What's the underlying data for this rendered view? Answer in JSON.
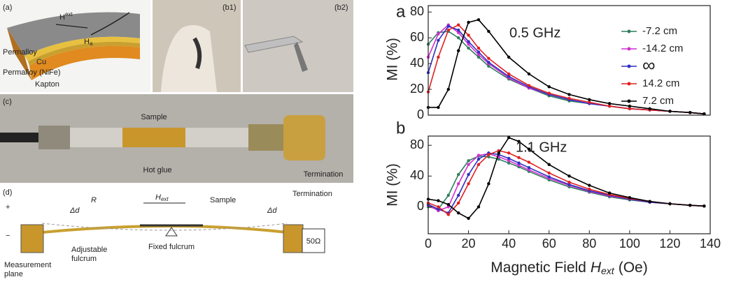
{
  "panels": {
    "a": {
      "label": "(a)",
      "h_ext": "H",
      "h_ext_sub": "ext",
      "h_a": "H",
      "h_a_sub": "a",
      "layers": [
        "Permalloy",
        "Cu",
        "Permalloy (NiFe)",
        "Kapton"
      ]
    },
    "b1": {
      "label": "(b1)"
    },
    "b2": {
      "label": "(b2)"
    },
    "c": {
      "label": "(c)",
      "sample": "Sample",
      "hot_glue": "Hot glue",
      "termination": "Termination"
    },
    "d": {
      "label": "(d)",
      "r": "R",
      "delta_left": "Δd",
      "delta_right": "Δd",
      "h_ext": "H",
      "h_ext_sub": "ext",
      "sample": "Sample",
      "adjustable_fulcrum": [
        "Adjustable",
        "fulcrum"
      ],
      "fixed_fulcrum": "Fixed fulcrum",
      "load": "50Ω",
      "measurement_plane": [
        "Measurement",
        "plane"
      ],
      "plus": "+",
      "minus": "−"
    }
  },
  "chart_data": [
    {
      "type": "line",
      "panel_label": "a",
      "annotation": "0.5 GHz",
      "ylabel": "MI (%)",
      "x": [
        0,
        5,
        10,
        15,
        20,
        25,
        30,
        40,
        50,
        60,
        70,
        80,
        90,
        100,
        110,
        120,
        130,
        137
      ],
      "xlim": [
        0,
        140
      ],
      "ylim": [
        0,
        85
      ],
      "yticks": [
        0,
        20,
        40,
        60,
        80
      ],
      "legend": "upper right",
      "series": [
        {
          "name": "-7.2 cm",
          "color": "#2f7f5f",
          "values": [
            55,
            64,
            65,
            60,
            52,
            45,
            38,
            28,
            21,
            15,
            11,
            9,
            7,
            5,
            4,
            3,
            2,
            1
          ]
        },
        {
          "name": "-14.2 cm",
          "color": "#d030d0",
          "values": [
            45,
            63,
            70,
            64,
            55,
            47,
            40,
            29,
            21,
            16,
            12,
            9,
            7,
            5,
            4,
            3,
            2,
            1
          ]
        },
        {
          "name": "∞",
          "color": "#3030c0",
          "values": [
            33,
            58,
            69,
            66,
            57,
            49,
            41,
            30,
            22,
            16,
            12,
            9,
            7,
            5,
            4,
            3,
            2,
            1
          ]
        },
        {
          "name": "14.2 cm",
          "color": "#e02020",
          "values": [
            18,
            45,
            66,
            70,
            62,
            52,
            44,
            32,
            23,
            17,
            13,
            10,
            7,
            5,
            4,
            3,
            2,
            1
          ]
        },
        {
          "name": "7.2 cm",
          "color": "#000000",
          "values": [
            6,
            6,
            20,
            50,
            72,
            74,
            65,
            45,
            32,
            22,
            16,
            12,
            9,
            7,
            5,
            3,
            2,
            1
          ]
        }
      ]
    },
    {
      "type": "line",
      "panel_label": "b",
      "annotation": "1.1 GHz",
      "ylabel": "MI (%)",
      "xlabel": "Magnetic Field",
      "xlabel_symbol": "H",
      "xlabel_subscript": "ext",
      "xlabel_unit": "(Oe)",
      "x": [
        0,
        5,
        10,
        15,
        20,
        25,
        30,
        35,
        40,
        45,
        50,
        60,
        70,
        80,
        90,
        100,
        110,
        120,
        130,
        137
      ],
      "xlim": [
        0,
        140
      ],
      "xticks": [
        0,
        20,
        40,
        60,
        80,
        100,
        120,
        140
      ],
      "ylim": [
        -35,
        92
      ],
      "yticks": [
        0,
        40,
        80
      ],
      "series": [
        {
          "color": "#2f7f5f",
          "values": [
            0,
            -3,
            15,
            42,
            60,
            66,
            65,
            62,
            57,
            52,
            46,
            35,
            26,
            19,
            13,
            9,
            6,
            4,
            2,
            1
          ]
        },
        {
          "color": "#d030d0",
          "values": [
            2,
            -5,
            0,
            30,
            55,
            67,
            69,
            65,
            60,
            54,
            48,
            37,
            28,
            20,
            14,
            10,
            6,
            4,
            2,
            1
          ]
        },
        {
          "color": "#3030c0",
          "values": [
            3,
            -3,
            -8,
            15,
            42,
            62,
            70,
            68,
            63,
            57,
            51,
            39,
            29,
            21,
            15,
            10,
            6,
            4,
            2,
            1
          ]
        },
        {
          "color": "#e02020",
          "values": [
            5,
            0,
            -10,
            5,
            30,
            55,
            68,
            73,
            70,
            64,
            58,
            44,
            32,
            23,
            16,
            11,
            7,
            4,
            2,
            1
          ]
        },
        {
          "color": "#000000",
          "values": [
            10,
            8,
            3,
            -8,
            -15,
            0,
            30,
            70,
            90,
            85,
            75,
            55,
            40,
            28,
            18,
            12,
            7,
            4,
            2,
            1
          ]
        }
      ]
    }
  ]
}
